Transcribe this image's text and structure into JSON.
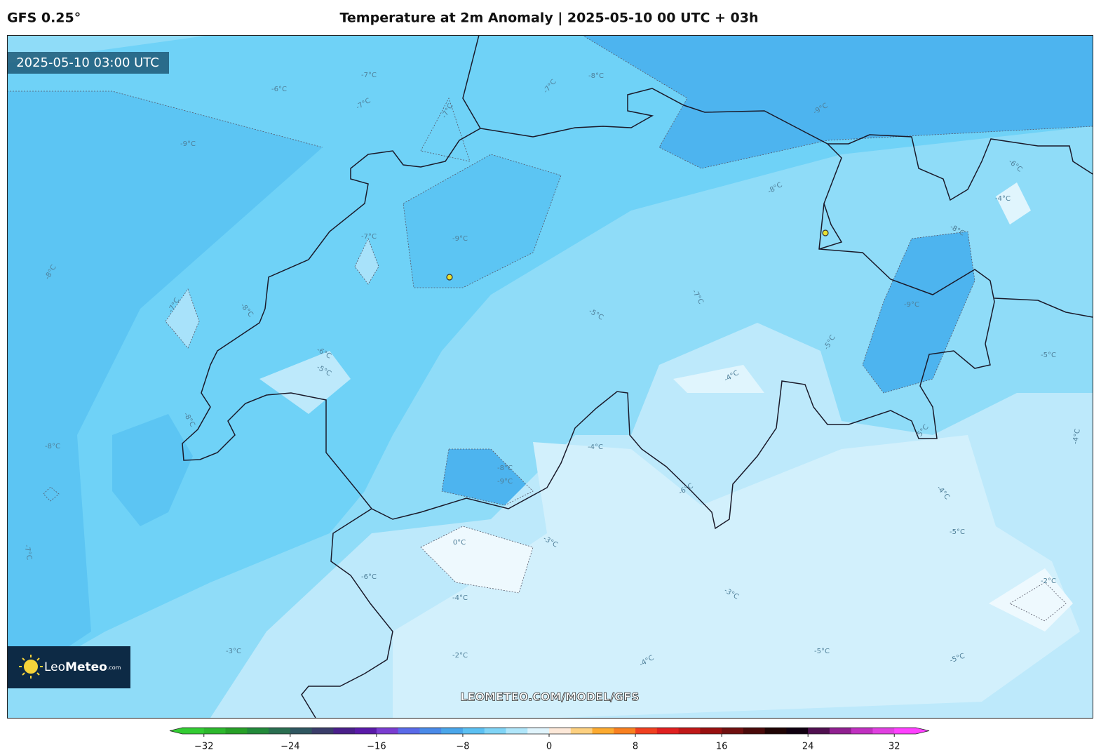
{
  "header": {
    "model": "GFS 0.25°",
    "title": "Temperature at 2m Anomaly | 2025-05-10 00 UTC + 03h"
  },
  "map": {
    "timestamp": "2025-05-10 03:00 UTC",
    "watermark": "LEOMETEO.COM/MODEL/GFS",
    "contour_labels": [
      "-6°C",
      "-7°C",
      "-7°C",
      "-7°C",
      "-8°C",
      "-7°C",
      "-9°C",
      "-9°C",
      "-8°C",
      "-6°C",
      "-4°C",
      "-7°C",
      "-9°C",
      "-8°C",
      "-8°C",
      "-7°C",
      "-8°C",
      "-5°C",
      "-7°C",
      "-9°C",
      "-5°C",
      "-6°C",
      "-5°C",
      "-4°C",
      "-5°C",
      "-8°C",
      "-8°C",
      "-4°C",
      "-5°C",
      "-4°C",
      "-8°C",
      "-9°C",
      "-6°C",
      "-4°C",
      "-7°C",
      "0°C",
      "-3°C",
      "-5°C",
      "-6°C",
      "-3°C",
      "-4°C",
      "-2°C",
      "-3°C",
      "-2°C",
      "-4°C",
      "-5°C",
      "-5°C"
    ]
  },
  "logo": {
    "name_regular": "Leo",
    "name_bold": "Meteo",
    "suffix": ".com"
  },
  "colorbar": {
    "lim": [
      -34,
      34
    ],
    "ticks": [
      {
        "value": -32,
        "label": "−32"
      },
      {
        "value": -24,
        "label": "−24"
      },
      {
        "value": -16,
        "label": "−16"
      },
      {
        "value": -8,
        "label": "−8"
      },
      0,
      8,
      16,
      24,
      32
    ],
    "colors": [
      "#33cc33",
      "#2db82d",
      "#27a027",
      "#228a3a",
      "#2a6e50",
      "#2f5660",
      "#3a3d6a",
      "#4a1f8a",
      "#5a1aa8",
      "#7a3cd0",
      "#5a6ae8",
      "#4a8ae8",
      "#4aa6ea",
      "#5cc0f2",
      "#80d4f6",
      "#b0e6fa",
      "#e0f4fc",
      "#fde8d8",
      "#fdd080",
      "#fcaa30",
      "#f88020",
      "#f04020",
      "#e02020",
      "#c01818",
      "#981010",
      "#701010",
      "#4a0a0a",
      "#200404",
      "#100010",
      "#501050",
      "#902090",
      "#c030c0",
      "#e040e0",
      "#ff40ff"
    ]
  }
}
